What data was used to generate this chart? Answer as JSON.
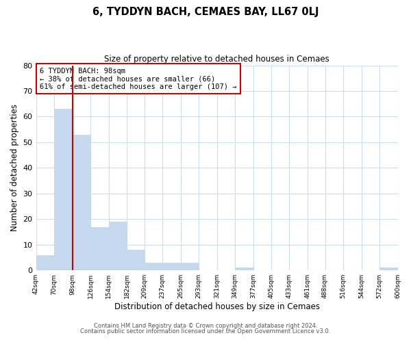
{
  "title": "6, TYDDYN BACH, CEMAES BAY, LL67 0LJ",
  "subtitle": "Size of property relative to detached houses in Cemaes",
  "xlabel": "Distribution of detached houses by size in Cemaes",
  "ylabel": "Number of detached properties",
  "bar_edges": [
    42,
    70,
    98,
    126,
    154,
    182,
    209,
    237,
    265,
    293,
    321,
    349,
    377,
    405,
    433,
    461,
    488,
    516,
    544,
    572,
    600
  ],
  "bar_heights": [
    6,
    63,
    53,
    17,
    19,
    8,
    3,
    3,
    3,
    0,
    0,
    1,
    0,
    0,
    0,
    0,
    0,
    0,
    0,
    1
  ],
  "bar_color": "#c5d8ed",
  "bar_edgecolor": "#c5d8ed",
  "vline_x": 98,
  "vline_color": "#cc0000",
  "annotation_title": "6 TYDDYN BACH: 98sqm",
  "annotation_line1": "← 38% of detached houses are smaller (66)",
  "annotation_line2": "61% of semi-detached houses are larger (107) →",
  "annotation_box_edgecolor": "#cc0000",
  "ylim": [
    0,
    80
  ],
  "tick_labels": [
    "42sqm",
    "70sqm",
    "98sqm",
    "126sqm",
    "154sqm",
    "182sqm",
    "209sqm",
    "237sqm",
    "265sqm",
    "293sqm",
    "321sqm",
    "349sqm",
    "377sqm",
    "405sqm",
    "433sqm",
    "461sqm",
    "488sqm",
    "516sqm",
    "544sqm",
    "572sqm",
    "600sqm"
  ],
  "footer_line1": "Contains HM Land Registry data © Crown copyright and database right 2024.",
  "footer_line2": "Contains public sector information licensed under the Open Government Licence v3.0.",
  "background_color": "#ffffff",
  "grid_color": "#d0dde8"
}
